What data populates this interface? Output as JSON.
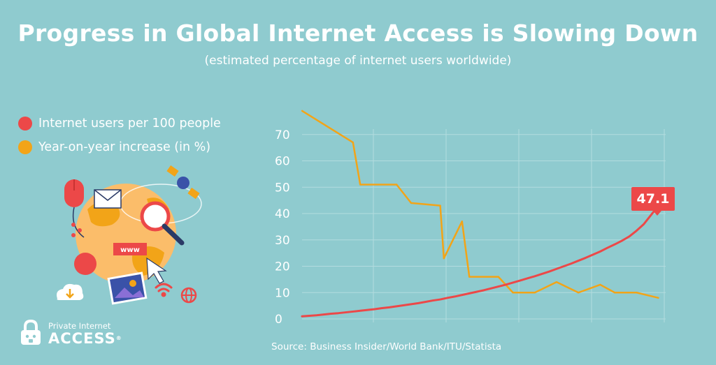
{
  "header": {
    "title": "Progress in Global Internet Access is Slowing Down",
    "subtitle": "(estimated percentage of internet users worldwide)"
  },
  "legend": {
    "items": [
      {
        "label": "Internet users per 100 people",
        "color": "#ec4848"
      },
      {
        "label": "Year-on-year increase (in %)",
        "color": "#f2a418"
      }
    ]
  },
  "callout": {
    "label": "47.1"
  },
  "source": "Source: Business Insider/World Bank/ITU/Statista",
  "brand": {
    "line1": "Private Internet",
    "line2": "ACCESS",
    "reg": "®",
    "icon": "padlock-robot-logo"
  },
  "illustration": {
    "icons": [
      "computer-mouse-icon",
      "envelope-icon",
      "satellite-icon",
      "globe-icon",
      "magnifier-icon",
      "www-tag-icon",
      "cursor-icon",
      "image-icon",
      "wifi-icon",
      "cloud-download-icon",
      "share-icon",
      "web-globe-icon"
    ],
    "www_label": "www"
  },
  "chart_data": {
    "type": "line",
    "title": "Progress in Global Internet Access is Slowing Down",
    "subtitle": "(estimated percentage of internet users worldwide)",
    "xlabel": "",
    "ylabel": "",
    "ylim": [
      0,
      80
    ],
    "y_ticks": [
      0,
      10,
      20,
      30,
      40,
      50,
      60,
      70
    ],
    "grid": true,
    "legend_position": "left",
    "x": [
      1,
      2,
      3,
      4,
      5,
      6,
      7,
      8,
      9,
      10,
      11,
      12,
      13,
      14,
      15,
      16,
      17,
      18,
      19,
      20,
      21,
      22,
      23,
      24,
      25,
      26,
      27,
      28,
      29,
      30,
      31,
      32,
      33,
      34,
      35,
      36,
      37,
      38,
      39,
      40,
      41,
      42,
      43,
      44,
      45,
      46,
      47,
      48,
      49,
      50,
      51
    ],
    "series": [
      {
        "name": "Internet users per 100 people",
        "color": "#ec4848",
        "values": [
          1.0,
          1.2,
          1.4,
          1.7,
          2.0,
          2.2,
          2.5,
          2.8,
          3.1,
          3.4,
          3.7,
          4.1,
          4.4,
          4.8,
          5.2,
          5.6,
          6.0,
          6.5,
          7.0,
          7.4,
          8.0,
          8.5,
          9.1,
          9.7,
          10.3,
          10.9,
          11.6,
          12.3,
          13.0,
          13.8,
          14.6,
          15.4,
          16.2,
          17.1,
          18.0,
          19.0,
          20.0,
          21.0,
          22.1,
          23.2,
          24.4,
          25.6,
          27.0,
          28.3,
          29.7,
          31.3,
          33.5,
          36.0,
          39.5,
          43.0,
          47.1
        ]
      },
      {
        "name": "Year-on-year increase (in %)",
        "color": "#f2a418",
        "points": [
          [
            1,
            79
          ],
          [
            8,
            67
          ],
          [
            9,
            51
          ],
          [
            14,
            51
          ],
          [
            16,
            44
          ],
          [
            20,
            43
          ],
          [
            20.5,
            23
          ],
          [
            23,
            37
          ],
          [
            24,
            16
          ],
          [
            28,
            16
          ],
          [
            30,
            10
          ],
          [
            33,
            10
          ],
          [
            36,
            14
          ],
          [
            39,
            10
          ],
          [
            42,
            13
          ],
          [
            44,
            10
          ],
          [
            47,
            10
          ],
          [
            50,
            8
          ]
        ]
      }
    ],
    "annotations": [
      {
        "series": "Internet users per 100 people",
        "label": "47.1"
      }
    ]
  }
}
